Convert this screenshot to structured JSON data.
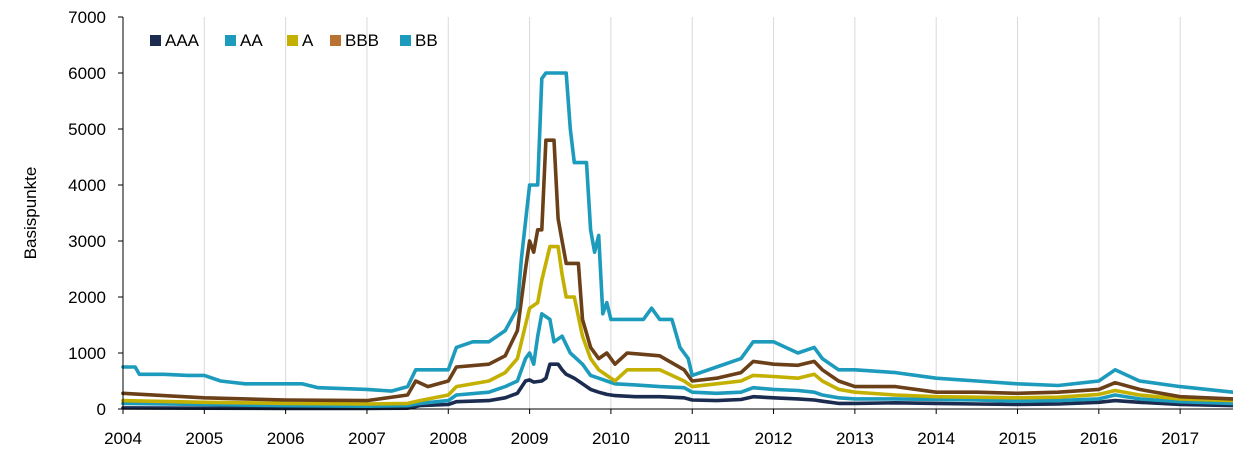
{
  "chart_data": {
    "type": "line",
    "ylabel": "Basispunkte",
    "xlabel": "",
    "xlim": [
      2004.0,
      2017.65
    ],
    "ylim": [
      0,
      7000
    ],
    "y_ticks": [
      "0",
      "1000",
      "2000",
      "3000",
      "4000",
      "5000",
      "6000",
      "7000"
    ],
    "x_ticks": [
      "2004",
      "2005",
      "2006",
      "2007",
      "2008",
      "2009",
      "2010",
      "2011",
      "2012",
      "2013",
      "2014",
      "2015",
      "2016",
      "2017"
    ],
    "grid": "vertical",
    "legend_position": "top-left",
    "series": [
      {
        "name": "AAA",
        "color": "#1b2c50",
        "points": [
          [
            2004.0,
            20
          ],
          [
            2005.0,
            15
          ],
          [
            2006.0,
            10
          ],
          [
            2007.0,
            10
          ],
          [
            2007.5,
            15
          ],
          [
            2007.65,
            60
          ],
          [
            2008.0,
            80
          ],
          [
            2008.1,
            130
          ],
          [
            2008.5,
            150
          ],
          [
            2008.7,
            200
          ],
          [
            2008.85,
            280
          ],
          [
            2008.95,
            500
          ],
          [
            2009.0,
            520
          ],
          [
            2009.05,
            480
          ],
          [
            2009.15,
            500
          ],
          [
            2009.2,
            550
          ],
          [
            2009.25,
            800
          ],
          [
            2009.35,
            800
          ],
          [
            2009.4,
            700
          ],
          [
            2009.45,
            620
          ],
          [
            2009.55,
            550
          ],
          [
            2009.65,
            450
          ],
          [
            2009.75,
            350
          ],
          [
            2009.85,
            300
          ],
          [
            2009.95,
            260
          ],
          [
            2010.05,
            240
          ],
          [
            2010.3,
            220
          ],
          [
            2010.6,
            220
          ],
          [
            2010.9,
            200
          ],
          [
            2011.0,
            160
          ],
          [
            2011.3,
            150
          ],
          [
            2011.6,
            170
          ],
          [
            2011.75,
            220
          ],
          [
            2012.0,
            200
          ],
          [
            2012.3,
            180
          ],
          [
            2012.5,
            160
          ],
          [
            2012.6,
            140
          ],
          [
            2012.8,
            100
          ],
          [
            2013.0,
            100
          ],
          [
            2013.5,
            110
          ],
          [
            2014.0,
            100
          ],
          [
            2014.5,
            90
          ],
          [
            2015.0,
            80
          ],
          [
            2015.5,
            90
          ],
          [
            2016.0,
            120
          ],
          [
            2016.2,
            150
          ],
          [
            2016.5,
            120
          ],
          [
            2017.0,
            80
          ],
          [
            2017.65,
            60
          ]
        ]
      },
      {
        "name": "AA",
        "color": "#1d9bbc",
        "points": [
          [
            2004.0,
            100
          ],
          [
            2005.0,
            80
          ],
          [
            2006.0,
            60
          ],
          [
            2007.0,
            50
          ],
          [
            2007.5,
            60
          ],
          [
            2007.65,
            100
          ],
          [
            2008.0,
            150
          ],
          [
            2008.1,
            250
          ],
          [
            2008.5,
            300
          ],
          [
            2008.7,
            400
          ],
          [
            2008.85,
            500
          ],
          [
            2008.95,
            900
          ],
          [
            2009.0,
            1000
          ],
          [
            2009.05,
            800
          ],
          [
            2009.1,
            1300
          ],
          [
            2009.15,
            1700
          ],
          [
            2009.25,
            1600
          ],
          [
            2009.3,
            1200
          ],
          [
            2009.4,
            1300
          ],
          [
            2009.5,
            1000
          ],
          [
            2009.65,
            800
          ],
          [
            2009.75,
            600
          ],
          [
            2009.85,
            550
          ],
          [
            2009.95,
            500
          ],
          [
            2010.05,
            450
          ],
          [
            2010.3,
            430
          ],
          [
            2010.6,
            400
          ],
          [
            2010.9,
            380
          ],
          [
            2011.0,
            300
          ],
          [
            2011.3,
            280
          ],
          [
            2011.6,
            300
          ],
          [
            2011.75,
            380
          ],
          [
            2012.0,
            350
          ],
          [
            2012.3,
            330
          ],
          [
            2012.5,
            300
          ],
          [
            2012.6,
            250
          ],
          [
            2012.8,
            200
          ],
          [
            2013.0,
            180
          ],
          [
            2013.5,
            180
          ],
          [
            2014.0,
            170
          ],
          [
            2014.5,
            160
          ],
          [
            2015.0,
            140
          ],
          [
            2015.5,
            150
          ],
          [
            2016.0,
            180
          ],
          [
            2016.2,
            250
          ],
          [
            2016.5,
            180
          ],
          [
            2017.0,
            130
          ],
          [
            2017.65,
            100
          ]
        ]
      },
      {
        "name": "A",
        "color": "#c3b000",
        "points": [
          [
            2004.0,
            150
          ],
          [
            2005.0,
            120
          ],
          [
            2006.0,
            100
          ],
          [
            2007.0,
            90
          ],
          [
            2007.5,
            100
          ],
          [
            2007.65,
            150
          ],
          [
            2008.0,
            250
          ],
          [
            2008.1,
            400
          ],
          [
            2008.5,
            500
          ],
          [
            2008.7,
            650
          ],
          [
            2008.85,
            900
          ],
          [
            2008.95,
            1500
          ],
          [
            2009.0,
            1800
          ],
          [
            2009.1,
            1900
          ],
          [
            2009.15,
            2300
          ],
          [
            2009.25,
            2900
          ],
          [
            2009.35,
            2900
          ],
          [
            2009.4,
            2400
          ],
          [
            2009.45,
            2000
          ],
          [
            2009.55,
            2000
          ],
          [
            2009.65,
            1300
          ],
          [
            2009.75,
            900
          ],
          [
            2009.85,
            700
          ],
          [
            2009.95,
            600
          ],
          [
            2010.05,
            500
          ],
          [
            2010.2,
            700
          ],
          [
            2010.6,
            700
          ],
          [
            2010.9,
            500
          ],
          [
            2011.0,
            400
          ],
          [
            2011.3,
            450
          ],
          [
            2011.6,
            500
          ],
          [
            2011.75,
            600
          ],
          [
            2012.0,
            580
          ],
          [
            2012.3,
            550
          ],
          [
            2012.5,
            620
          ],
          [
            2012.6,
            500
          ],
          [
            2012.8,
            350
          ],
          [
            2013.0,
            300
          ],
          [
            2013.5,
            250
          ],
          [
            2014.0,
            220
          ],
          [
            2014.5,
            210
          ],
          [
            2015.0,
            200
          ],
          [
            2015.5,
            210
          ],
          [
            2016.0,
            260
          ],
          [
            2016.2,
            330
          ],
          [
            2016.5,
            250
          ],
          [
            2017.0,
            180
          ],
          [
            2017.65,
            150
          ]
        ]
      },
      {
        "name": "BBB",
        "color": "#6b4018",
        "points": [
          [
            2004.0,
            280
          ],
          [
            2005.0,
            200
          ],
          [
            2006.0,
            160
          ],
          [
            2007.0,
            150
          ],
          [
            2007.5,
            250
          ],
          [
            2007.6,
            500
          ],
          [
            2007.75,
            400
          ],
          [
            2008.0,
            500
          ],
          [
            2008.1,
            750
          ],
          [
            2008.5,
            800
          ],
          [
            2008.7,
            950
          ],
          [
            2008.85,
            1400
          ],
          [
            2008.95,
            2500
          ],
          [
            2009.0,
            3000
          ],
          [
            2009.05,
            2800
          ],
          [
            2009.1,
            3200
          ],
          [
            2009.15,
            3200
          ],
          [
            2009.2,
            4800
          ],
          [
            2009.3,
            4800
          ],
          [
            2009.35,
            3400
          ],
          [
            2009.4,
            3000
          ],
          [
            2009.45,
            2600
          ],
          [
            2009.6,
            2600
          ],
          [
            2009.65,
            1600
          ],
          [
            2009.75,
            1100
          ],
          [
            2009.85,
            900
          ],
          [
            2009.95,
            1000
          ],
          [
            2010.05,
            800
          ],
          [
            2010.2,
            1000
          ],
          [
            2010.6,
            950
          ],
          [
            2010.9,
            700
          ],
          [
            2011.0,
            500
          ],
          [
            2011.3,
            550
          ],
          [
            2011.6,
            650
          ],
          [
            2011.75,
            850
          ],
          [
            2012.0,
            800
          ],
          [
            2012.3,
            780
          ],
          [
            2012.5,
            850
          ],
          [
            2012.6,
            700
          ],
          [
            2012.8,
            500
          ],
          [
            2013.0,
            400
          ],
          [
            2013.5,
            400
          ],
          [
            2014.0,
            300
          ],
          [
            2014.5,
            300
          ],
          [
            2015.0,
            280
          ],
          [
            2015.5,
            300
          ],
          [
            2016.0,
            350
          ],
          [
            2016.2,
            470
          ],
          [
            2016.5,
            350
          ],
          [
            2017.0,
            220
          ],
          [
            2017.65,
            180
          ]
        ]
      },
      {
        "name": "BB",
        "color": "#1d9bbc",
        "points": [
          [
            2004.0,
            750
          ],
          [
            2004.15,
            750
          ],
          [
            2004.2,
            620
          ],
          [
            2004.5,
            620
          ],
          [
            2004.8,
            600
          ],
          [
            2005.0,
            600
          ],
          [
            2005.2,
            500
          ],
          [
            2005.5,
            450
          ],
          [
            2006.0,
            450
          ],
          [
            2006.2,
            450
          ],
          [
            2006.4,
            380
          ],
          [
            2007.0,
            350
          ],
          [
            2007.3,
            320
          ],
          [
            2007.5,
            400
          ],
          [
            2007.6,
            700
          ],
          [
            2008.0,
            700
          ],
          [
            2008.1,
            1100
          ],
          [
            2008.3,
            1200
          ],
          [
            2008.5,
            1200
          ],
          [
            2008.7,
            1400
          ],
          [
            2008.85,
            1800
          ],
          [
            2008.9,
            2700
          ],
          [
            2009.0,
            4000
          ],
          [
            2009.1,
            4000
          ],
          [
            2009.15,
            5900
          ],
          [
            2009.2,
            6000
          ],
          [
            2009.45,
            6000
          ],
          [
            2009.5,
            5000
          ],
          [
            2009.55,
            4400
          ],
          [
            2009.7,
            4400
          ],
          [
            2009.75,
            3200
          ],
          [
            2009.8,
            2800
          ],
          [
            2009.85,
            3100
          ],
          [
            2009.9,
            1700
          ],
          [
            2009.95,
            1900
          ],
          [
            2010.0,
            1600
          ],
          [
            2010.4,
            1600
          ],
          [
            2010.5,
            1800
          ],
          [
            2010.6,
            1600
          ],
          [
            2010.75,
            1600
          ],
          [
            2010.85,
            1100
          ],
          [
            2010.95,
            900
          ],
          [
            2011.0,
            600
          ],
          [
            2011.3,
            750
          ],
          [
            2011.6,
            900
          ],
          [
            2011.75,
            1200
          ],
          [
            2012.0,
            1200
          ],
          [
            2012.3,
            1000
          ],
          [
            2012.5,
            1100
          ],
          [
            2012.6,
            900
          ],
          [
            2012.8,
            700
          ],
          [
            2013.0,
            700
          ],
          [
            2013.5,
            650
          ],
          [
            2014.0,
            550
          ],
          [
            2014.5,
            500
          ],
          [
            2015.0,
            450
          ],
          [
            2015.5,
            420
          ],
          [
            2016.0,
            500
          ],
          [
            2016.2,
            700
          ],
          [
            2016.5,
            500
          ],
          [
            2017.0,
            400
          ],
          [
            2017.65,
            300
          ]
        ]
      }
    ]
  }
}
